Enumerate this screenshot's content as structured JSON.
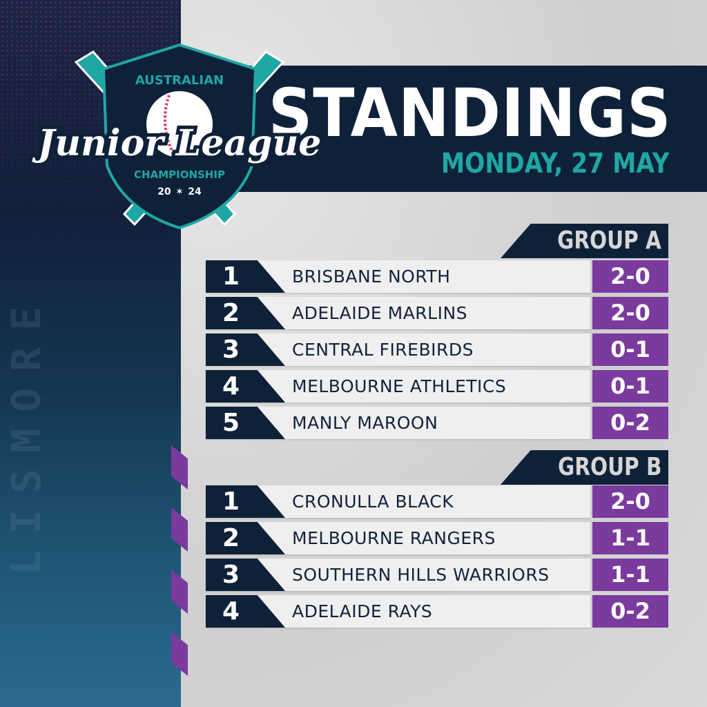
{
  "logo": {
    "top": "AUSTRALIAN",
    "script": "Junior League",
    "bottom": "CHAMPIONSHIP",
    "year_left": "20",
    "year_right": "24"
  },
  "side_text": "LISMORE",
  "header": {
    "title": "STANDINGS",
    "date": "MONDAY, 27 MAY"
  },
  "colors": {
    "navy": "#0f2139",
    "teal": "#1fa7a5",
    "purple": "#7a3a9e"
  },
  "groups": [
    {
      "label": "GROUP A",
      "rows": [
        {
          "rank": "1",
          "team": "BRISBANE NORTH",
          "record": "2-0"
        },
        {
          "rank": "2",
          "team": "ADELAIDE MARLINS",
          "record": "2-0"
        },
        {
          "rank": "3",
          "team": "CENTRAL FIREBIRDS",
          "record": "0-1"
        },
        {
          "rank": "4",
          "team": "MELBOURNE ATHLETICS",
          "record": "0-1"
        },
        {
          "rank": "5",
          "team": "MANLY MAROON",
          "record": "0-2"
        }
      ]
    },
    {
      "label": "GROUP B",
      "rows": [
        {
          "rank": "1",
          "team": "CRONULLA BLACK",
          "record": "2-0"
        },
        {
          "rank": "2",
          "team": "MELBOURNE RANGERS",
          "record": "1-1"
        },
        {
          "rank": "3",
          "team": "SOUTHERN HILLS WARRIORS",
          "record": "1-1"
        },
        {
          "rank": "4",
          "team": "ADELAIDE RAYS",
          "record": "0-2"
        }
      ]
    }
  ]
}
